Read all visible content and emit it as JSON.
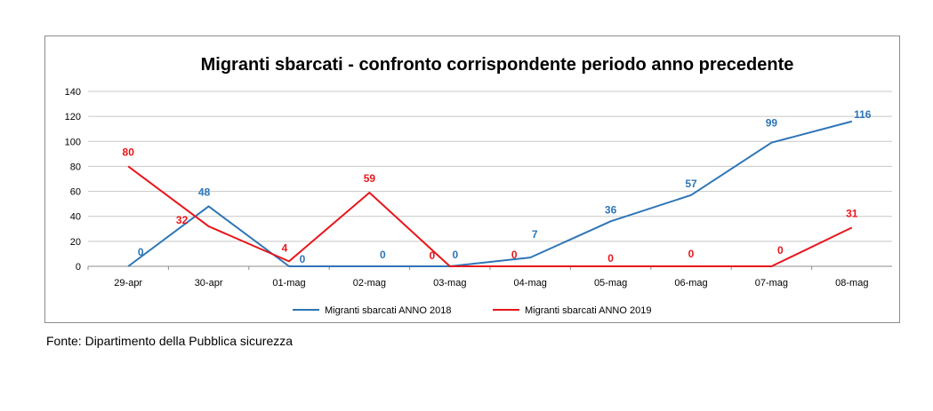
{
  "source_note": "Fonte: Dipartimento della Pubblica sicurezza",
  "colors": {
    "anno_2018": "#2e75b6",
    "anno_2019": "#e8161b",
    "grid": "#c8c8c8",
    "axis": "#8c8c8c"
  },
  "chart_data": {
    "type": "line",
    "title": "Migranti sbarcati - confronto corrispondente periodo anno precedente",
    "xlabel": "",
    "ylabel": "",
    "categories": [
      "29-apr",
      "30-apr",
      "01-mag",
      "02-mag",
      "03-mag",
      "04-mag",
      "05-mag",
      "06-mag",
      "07-mag",
      "08-mag"
    ],
    "ylim": [
      0,
      140
    ],
    "yticks": [
      0,
      20,
      40,
      60,
      80,
      100,
      120,
      140
    ],
    "grid": true,
    "legend": "bottom",
    "data_labels": true,
    "series": [
      {
        "name": "Migranti sbarcati ANNO 2018",
        "color": "#2e75b6",
        "values": [
          0,
          48,
          0,
          0,
          0,
          7,
          36,
          57,
          99,
          116
        ]
      },
      {
        "name": "Migranti sbarcati ANNO 2019",
        "color": "#e8161b",
        "values": [
          80,
          32,
          4,
          59,
          0,
          0,
          0,
          0,
          0,
          31
        ]
      }
    ]
  }
}
